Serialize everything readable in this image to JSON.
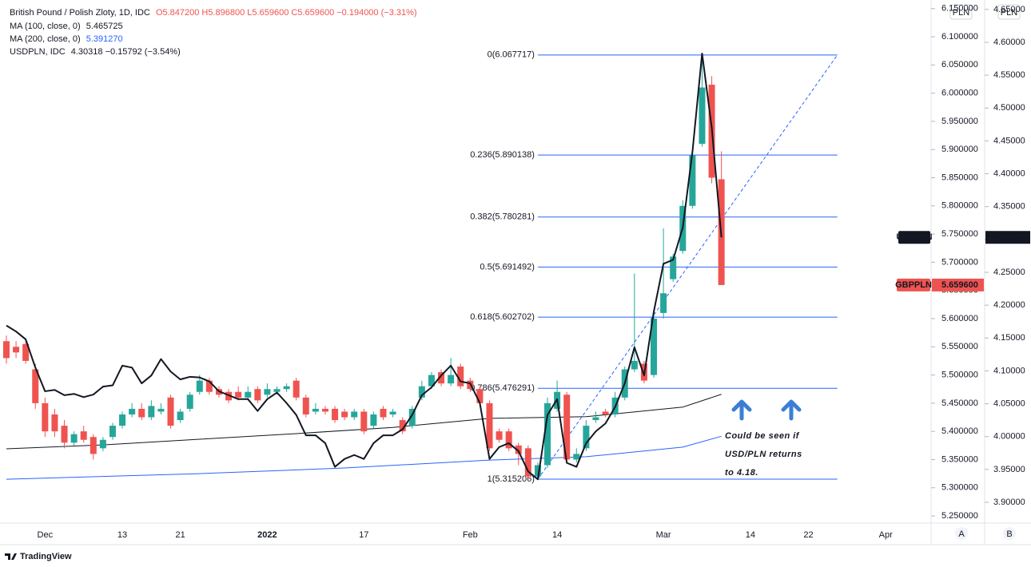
{
  "chart_data": {
    "type": "candlestick",
    "title": "British Pound / Polish Zloty, 1D, IDC",
    "ohlc_label": "O5.847200 H5.896800 L5.659600 C5.659600 −0.194000 (−3.31%)",
    "currency": "PLN",
    "currency2": "PLN",
    "scale_buttons": [
      "A",
      "B"
    ],
    "footer": "TradingView",
    "badge": "GBPPLN",
    "badge_value": "5.659600",
    "up_color": "#26a69a",
    "down_color": "#ef5350",
    "open": [
      5.56,
      5.55,
      5.555,
      5.51,
      5.45,
      5.43,
      5.41,
      5.38,
      5.4,
      5.39,
      5.37,
      5.39,
      5.41,
      5.43,
      5.44,
      5.425,
      5.435,
      5.46,
      5.42,
      5.44,
      5.47,
      5.49,
      5.475,
      5.47,
      5.47,
      5.46,
      5.475,
      5.465,
      5.47,
      5.475,
      5.49,
      5.46,
      5.435,
      5.44,
      5.44,
      5.435,
      5.425,
      5.435,
      5.41,
      5.44,
      5.43,
      5.42,
      5.41,
      5.46,
      5.48,
      5.505,
      5.485,
      5.515,
      5.49,
      5.475,
      5.45,
      5.4,
      5.4,
      5.375,
      5.37,
      5.32,
      5.34,
      5.44,
      5.465,
      5.35,
      5.37,
      5.42,
      5.435,
      5.43,
      5.46,
      5.51,
      5.52,
      5.5,
      5.61,
      5.67,
      5.72,
      5.8,
      5.91,
      6.015,
      5.8472
    ],
    "high": [
      5.57,
      5.56,
      5.565,
      5.52,
      5.46,
      5.44,
      5.42,
      5.4,
      5.41,
      5.395,
      5.39,
      5.415,
      5.435,
      5.45,
      5.45,
      5.455,
      5.45,
      5.465,
      5.44,
      5.47,
      5.5,
      5.495,
      5.48,
      5.475,
      5.48,
      5.48,
      5.48,
      5.485,
      5.48,
      5.485,
      5.495,
      5.465,
      5.45,
      5.445,
      5.445,
      5.44,
      5.44,
      5.44,
      5.435,
      5.445,
      5.44,
      5.425,
      5.445,
      5.49,
      5.505,
      5.51,
      5.53,
      5.52,
      5.495,
      5.48,
      5.455,
      5.405,
      5.405,
      5.38,
      5.375,
      5.345,
      5.46,
      5.49,
      5.47,
      5.37,
      5.42,
      5.435,
      5.44,
      5.47,
      5.515,
      5.68,
      5.525,
      5.61,
      5.76,
      5.715,
      5.81,
      5.9,
      6.0677,
      6.03,
      5.8968
    ],
    "low": [
      5.52,
      5.53,
      5.52,
      5.44,
      5.39,
      5.39,
      5.37,
      5.375,
      5.38,
      5.35,
      5.365,
      5.385,
      5.405,
      5.425,
      5.42,
      5.42,
      5.43,
      5.405,
      5.415,
      5.435,
      5.465,
      5.465,
      5.46,
      5.45,
      5.455,
      5.455,
      5.45,
      5.46,
      5.465,
      5.47,
      5.455,
      5.425,
      5.43,
      5.43,
      5.415,
      5.42,
      5.42,
      5.395,
      5.405,
      5.42,
      5.425,
      5.395,
      5.405,
      5.455,
      5.475,
      5.48,
      5.48,
      5.475,
      5.47,
      5.445,
      5.365,
      5.38,
      5.365,
      5.34,
      5.315,
      5.3152,
      5.335,
      5.435,
      5.345,
      5.345,
      5.365,
      5.415,
      5.425,
      5.425,
      5.455,
      5.505,
      5.485,
      5.495,
      5.6,
      5.665,
      5.715,
      5.795,
      5.905,
      5.84,
      5.6596
    ],
    "close": [
      5.53,
      5.54,
      5.525,
      5.45,
      5.4,
      5.4,
      5.38,
      5.395,
      5.385,
      5.36,
      5.385,
      5.41,
      5.43,
      5.44,
      5.425,
      5.445,
      5.44,
      5.41,
      5.435,
      5.465,
      5.49,
      5.47,
      5.465,
      5.455,
      5.46,
      5.47,
      5.455,
      5.475,
      5.475,
      5.48,
      5.46,
      5.43,
      5.44,
      5.435,
      5.42,
      5.425,
      5.435,
      5.4,
      5.43,
      5.425,
      5.435,
      5.4,
      5.44,
      5.48,
      5.5,
      5.485,
      5.5,
      5.48,
      5.475,
      5.45,
      5.37,
      5.385,
      5.37,
      5.36,
      5.32,
      5.34,
      5.45,
      5.47,
      5.35,
      5.36,
      5.41,
      5.425,
      5.43,
      5.46,
      5.51,
      5.525,
      5.49,
      5.6,
      5.645,
      5.71,
      5.8,
      5.89,
      6.01,
      5.85,
      5.6596
    ],
    "series": [
      {
        "name": "MA (100, close, 0)",
        "legend_value": "5.465725",
        "color": "#131722",
        "width": 1,
        "x": [
          0,
          10,
          20,
          30,
          40,
          50,
          60,
          70,
          74
        ],
        "values": [
          5.369,
          5.376,
          5.386,
          5.396,
          5.407,
          5.423,
          5.426,
          5.443,
          5.465725
        ]
      },
      {
        "name": "MA (200, close, 0)",
        "legend_value": "5.391270",
        "color": "#2962ff",
        "width": 1,
        "x": [
          0,
          20,
          35,
          50,
          60,
          70,
          74
        ],
        "values": [
          5.315,
          5.325,
          5.335,
          5.349,
          5.355,
          5.372,
          5.39127
        ]
      },
      {
        "name": "USDPLN, IDC",
        "legend_value": "4.30318 −0.15792 (−3.54%)",
        "color": "#131722",
        "width": 2,
        "axis": "y2",
        "badge": "USDPLN",
        "badge_value": "4.30318",
        "values": [
          4.169,
          4.16,
          4.148,
          4.105,
          4.069,
          4.071,
          4.063,
          4.065,
          4.06,
          4.064,
          4.076,
          4.078,
          4.108,
          4.105,
          4.081,
          4.093,
          4.118,
          4.099,
          4.087,
          4.091,
          4.09,
          4.084,
          4.069,
          4.063,
          4.057,
          4.057,
          4.039,
          4.057,
          4.067,
          4.051,
          4.033,
          4.002,
          4.002,
          3.99,
          3.954,
          3.966,
          3.972,
          3.966,
          3.99,
          4.002,
          4.002,
          4.011,
          4.033,
          4.063,
          4.075,
          4.093,
          4.108,
          4.084,
          4.081,
          4.051,
          3.966,
          3.984,
          3.99,
          3.978,
          3.947,
          3.935,
          4.033,
          4.057,
          3.96,
          3.954,
          3.99,
          4.008,
          4.02,
          4.045,
          4.081,
          4.136,
          4.093,
          4.19,
          4.263,
          4.269,
          4.318,
          4.433,
          4.583,
          4.47,
          4.30318
        ]
      }
    ],
    "fib": {
      "color": "#2962ff",
      "x": [
        55,
        86
      ],
      "levels": [
        {
          "label": "0(6.067717)",
          "value": 6.067717
        },
        {
          "label": "0.236(5.890138)",
          "value": 5.890138
        },
        {
          "label": "0.382(5.780281)",
          "value": 5.780281
        },
        {
          "label": "0.5(5.691492)",
          "value": 5.691492
        },
        {
          "label": "0.618(5.602702)",
          "value": 5.602702
        },
        {
          "label": "0.786(5.476291)",
          "value": 5.476291
        },
        {
          "label": "1(5.315206)",
          "value": 5.315206
        }
      ]
    },
    "annotation": [
      "Could be seen if",
      "USD/PLN returns",
      "to 4.18."
    ],
    "xlim": [
      -0.66,
      95.7
    ],
    "xticks": [
      {
        "value": 4,
        "label": "Dec"
      },
      {
        "value": 12,
        "label": "13"
      },
      {
        "value": 18,
        "label": "21"
      },
      {
        "value": 27,
        "label": "2022"
      },
      {
        "value": 37,
        "label": "17"
      },
      {
        "value": 48,
        "label": "Feb"
      },
      {
        "value": 57,
        "label": "14"
      },
      {
        "value": 68,
        "label": "Mar"
      },
      {
        "value": 77,
        "label": "14"
      },
      {
        "value": 83,
        "label": "22"
      },
      {
        "value": 91,
        "label": "Apr"
      }
    ],
    "ylim": [
      5.2373,
      6.1652
    ],
    "yticks": [
      {
        "value": 5.25,
        "label": "5.250000"
      },
      {
        "value": 5.3,
        "label": "5.300000"
      },
      {
        "value": 5.35,
        "label": "5.350000"
      },
      {
        "value": 5.4,
        "label": "5.400000"
      },
      {
        "value": 5.45,
        "label": "5.450000"
      },
      {
        "value": 5.5,
        "label": "5.500000"
      },
      {
        "value": 5.55,
        "label": "5.550000"
      },
      {
        "value": 5.6,
        "label": "5.600000"
      },
      {
        "value": 5.65,
        "label": "5.650000"
      },
      {
        "value": 5.7,
        "label": "5.700000"
      },
      {
        "value": 5.75,
        "label": "5.750000"
      },
      {
        "value": 5.8,
        "label": "5.800000"
      },
      {
        "value": 5.85,
        "label": "5.850000"
      },
      {
        "value": 5.9,
        "label": "5.900000"
      },
      {
        "value": 5.95,
        "label": "5.950000"
      },
      {
        "value": 6.0,
        "label": "6.000000"
      },
      {
        "value": 6.05,
        "label": "6.050000"
      },
      {
        "value": 6.1,
        "label": "6.100000"
      },
      {
        "value": 6.15,
        "label": "6.150000"
      }
    ],
    "y2lim": [
      3.8684,
      4.6644
    ],
    "y2ticks": [
      {
        "value": 3.9,
        "label": "3.90000"
      },
      {
        "value": 3.95,
        "label": "3.95000"
      },
      {
        "value": 4.0,
        "label": "4.00000"
      },
      {
        "value": 4.05,
        "label": "4.05000"
      },
      {
        "value": 4.1,
        "label": "4.10000"
      },
      {
        "value": 4.15,
        "label": "4.15000"
      },
      {
        "value": 4.2,
        "label": "4.20000"
      },
      {
        "value": 4.25,
        "label": "4.25000"
      },
      {
        "value": 4.3,
        "label": "4.30000"
      },
      {
        "value": 4.35,
        "label": "4.35000"
      },
      {
        "value": 4.4,
        "label": "4.40000"
      },
      {
        "value": 4.45,
        "label": "4.45000"
      },
      {
        "value": 4.5,
        "label": "4.50000"
      },
      {
        "value": 4.55,
        "label": "4.55000"
      },
      {
        "value": 4.6,
        "label": "4.60000"
      },
      {
        "value": 4.65,
        "label": "4.65000"
      }
    ],
    "grid": false
  }
}
